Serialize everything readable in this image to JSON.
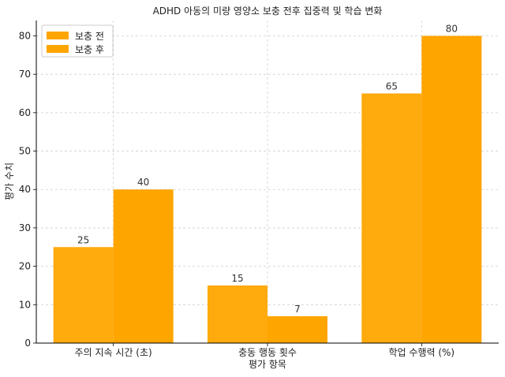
{
  "chart_data": {
    "type": "bar",
    "title": "ADHD 아동의 미량 영양소 보충 전후 집중력 및 학습 변화",
    "xlabel": "평가 항목",
    "ylabel": "평가 수치",
    "categories": [
      "주의 지속 시간 (초)",
      "충동 행동 횟수",
      "학업 수행력 (%)"
    ],
    "series": [
      {
        "name": "보충 전",
        "values": [
          25,
          15,
          65
        ],
        "color": "#FFA500"
      },
      {
        "name": "보충 후",
        "values": [
          40,
          7,
          80
        ],
        "color": "#FFA500"
      }
    ],
    "ylim": [
      0,
      84
    ],
    "yticks": [
      0,
      10,
      20,
      30,
      40,
      50,
      60,
      70,
      80
    ],
    "grid": true,
    "legend_position": "top-left"
  }
}
